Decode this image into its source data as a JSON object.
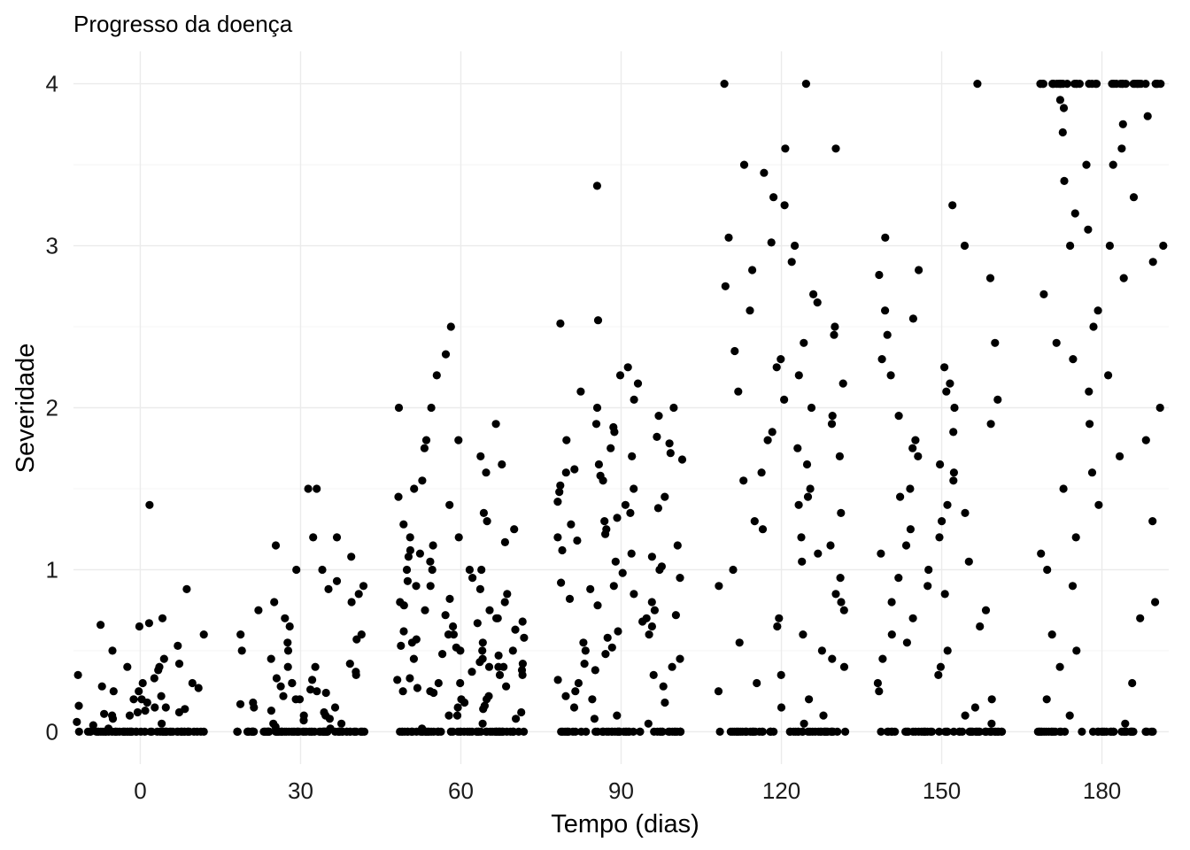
{
  "chart_data": {
    "type": "scatter",
    "title": "Progresso da doença",
    "xlabel": "Tempo (dias)",
    "ylabel": "Severidade",
    "x_ticks": [
      0,
      30,
      60,
      90,
      120,
      150,
      180
    ],
    "y_ticks": [
      0,
      1,
      2,
      3,
      4
    ],
    "xlim": [
      -12.5,
      192.5
    ],
    "ylim": [
      -0.2,
      4.2
    ],
    "jitter_width_days": 12,
    "grid": true,
    "legend": "none",
    "point_color": "#000000",
    "groups": [
      {
        "x": 0,
        "y": [
          0,
          0,
          0,
          0,
          0,
          0,
          0,
          0,
          0,
          0,
          0,
          0,
          0,
          0,
          0,
          0,
          0,
          0,
          0,
          0,
          0,
          0,
          0,
          0,
          0,
          0,
          0,
          0,
          0,
          0,
          0,
          0,
          0,
          0,
          0,
          0,
          0,
          0,
          0,
          0,
          0,
          0,
          0,
          0,
          0,
          0,
          0,
          0,
          0,
          0,
          0,
          0,
          0,
          0,
          0,
          0,
          0,
          0,
          0,
          0,
          0.02,
          0.04,
          0.05,
          0.06,
          0.08,
          0.1,
          0.1,
          0.11,
          0.12,
          0.12,
          0.13,
          0.14,
          0.15,
          0.15,
          0.16,
          0.18,
          0.2,
          0.2,
          0.22,
          0.25,
          0.25,
          0.27,
          0.28,
          0.3,
          0.3,
          0.33,
          0.35,
          0.38,
          0.4,
          0.4,
          0.42,
          0.45,
          0.5,
          0.53,
          0.6,
          0.65,
          0.66,
          0.67,
          0.7,
          0.88,
          1.4
        ]
      },
      {
        "x": 30,
        "y": [
          0,
          0,
          0,
          0,
          0,
          0,
          0,
          0,
          0,
          0,
          0,
          0,
          0,
          0,
          0,
          0,
          0,
          0,
          0,
          0,
          0,
          0,
          0,
          0,
          0,
          0,
          0,
          0,
          0,
          0,
          0,
          0,
          0,
          0,
          0,
          0,
          0,
          0,
          0,
          0,
          0,
          0,
          0,
          0,
          0,
          0,
          0,
          0,
          0,
          0,
          0,
          0,
          0,
          0,
          0,
          0,
          0,
          0,
          0,
          0,
          0,
          0,
          0,
          0,
          0,
          0,
          0,
          0,
          0,
          0,
          0,
          0,
          0,
          0,
          0,
          0,
          0,
          0,
          0,
          0,
          0.02,
          0.03,
          0.05,
          0.05,
          0.07,
          0.08,
          0.1,
          0.1,
          0.12,
          0.13,
          0.15,
          0.15,
          0.17,
          0.18,
          0.2,
          0.2,
          0.22,
          0.24,
          0.25,
          0.26,
          0.28,
          0.3,
          0.3,
          0.32,
          0.33,
          0.35,
          0.37,
          0.4,
          0.4,
          0.42,
          0.45,
          0.5,
          0.5,
          0.55,
          0.57,
          0.6,
          0.6,
          0.65,
          0.7,
          0.75,
          0.8,
          0.8,
          0.85,
          0.88,
          0.9,
          0.93,
          1.0,
          1.0,
          1.08,
          1.15,
          1.2,
          1.2,
          1.5,
          1.5
        ]
      },
      {
        "x": 60,
        "y": [
          0,
          0,
          0,
          0,
          0,
          0,
          0,
          0,
          0,
          0,
          0,
          0,
          0,
          0,
          0,
          0,
          0,
          0,
          0,
          0,
          0,
          0,
          0,
          0,
          0,
          0,
          0,
          0,
          0,
          0,
          0,
          0,
          0,
          0,
          0,
          0,
          0,
          0,
          0,
          0,
          0,
          0,
          0,
          0,
          0,
          0,
          0,
          0,
          0,
          0,
          0,
          0,
          0,
          0,
          0,
          0,
          0,
          0,
          0,
          0,
          0.02,
          0.05,
          0.08,
          0.1,
          0.1,
          0.12,
          0.14,
          0.15,
          0.16,
          0.18,
          0.2,
          0.2,
          0.22,
          0.24,
          0.25,
          0.25,
          0.27,
          0.28,
          0.3,
          0.3,
          0.32,
          0.33,
          0.35,
          0.35,
          0.37,
          0.38,
          0.4,
          0.4,
          0.4,
          0.42,
          0.43,
          0.45,
          0.45,
          0.47,
          0.48,
          0.5,
          0.5,
          0.5,
          0.52,
          0.53,
          0.55,
          0.55,
          0.57,
          0.58,
          0.6,
          0.6,
          0.62,
          0.63,
          0.65,
          0.67,
          0.68,
          0.7,
          0.7,
          0.72,
          0.75,
          0.75,
          0.78,
          0.8,
          0.8,
          0.82,
          0.85,
          0.88,
          0.9,
          0.9,
          0.93,
          0.95,
          1.0,
          1.0,
          1.0,
          1.0,
          1.05,
          1.08,
          1.1,
          1.12,
          1.15,
          1.17,
          1.2,
          1.2,
          1.25,
          1.28,
          1.3,
          1.35,
          1.4,
          1.45,
          1.5,
          1.55,
          1.6,
          1.65,
          1.7,
          1.75,
          1.8,
          1.8,
          1.9,
          2.0,
          2.0,
          2.2,
          2.33,
          2.5
        ]
      },
      {
        "x": 90,
        "y": [
          0,
          0,
          0,
          0,
          0,
          0,
          0,
          0,
          0,
          0,
          0,
          0,
          0,
          0,
          0,
          0,
          0,
          0,
          0,
          0,
          0,
          0,
          0,
          0,
          0,
          0,
          0,
          0,
          0,
          0,
          0,
          0,
          0,
          0,
          0,
          0,
          0,
          0,
          0,
          0,
          0,
          0,
          0,
          0,
          0,
          0,
          0,
          0,
          0,
          0,
          0.05,
          0.08,
          0.1,
          0.15,
          0.18,
          0.2,
          0.22,
          0.25,
          0.28,
          0.3,
          0.32,
          0.35,
          0.38,
          0.4,
          0.42,
          0.45,
          0.48,
          0.5,
          0.52,
          0.55,
          0.58,
          0.6,
          0.62,
          0.65,
          0.68,
          0.7,
          0.72,
          0.75,
          0.78,
          0.8,
          0.82,
          0.85,
          0.88,
          0.9,
          0.92,
          0.95,
          0.98,
          1.0,
          1.02,
          1.05,
          1.08,
          1.1,
          1.12,
          1.15,
          1.18,
          1.2,
          1.22,
          1.25,
          1.28,
          1.3,
          1.32,
          1.35,
          1.38,
          1.4,
          1.42,
          1.45,
          1.48,
          1.5,
          1.52,
          1.55,
          1.58,
          1.6,
          1.62,
          1.65,
          1.68,
          1.7,
          1.72,
          1.75,
          1.78,
          1.8,
          1.82,
          1.85,
          1.88,
          1.9,
          1.95,
          2.0,
          2.0,
          2.05,
          2.1,
          2.15,
          2.2,
          2.25,
          2.52,
          2.54,
          3.37
        ]
      },
      {
        "x": 120,
        "y": [
          0,
          0,
          0,
          0,
          0,
          0,
          0,
          0,
          0,
          0,
          0,
          0,
          0,
          0,
          0,
          0,
          0,
          0,
          0,
          0,
          0,
          0,
          0,
          0,
          0,
          0,
          0,
          0,
          0,
          0,
          0,
          0,
          0,
          0,
          0,
          0,
          0,
          0,
          0,
          0,
          0,
          0,
          0,
          0,
          0,
          0,
          0,
          0,
          0,
          0,
          0.05,
          0.1,
          0.15,
          0.2,
          0.25,
          0.3,
          0.35,
          0.4,
          0.45,
          0.5,
          0.55,
          0.6,
          0.65,
          0.7,
          0.75,
          0.8,
          0.85,
          0.9,
          0.95,
          1.0,
          1.05,
          1.1,
          1.15,
          1.2,
          1.25,
          1.3,
          1.35,
          1.4,
          1.45,
          1.5,
          1.55,
          1.6,
          1.65,
          1.7,
          1.75,
          1.8,
          1.85,
          1.9,
          1.95,
          2.0,
          2.05,
          2.1,
          2.15,
          2.2,
          2.25,
          2.3,
          2.35,
          2.4,
          2.45,
          2.5,
          2.6,
          2.65,
          2.7,
          2.75,
          2.85,
          2.9,
          3.0,
          3.02,
          3.05,
          3.25,
          3.3,
          3.45,
          3.5,
          3.6,
          3.6,
          4.0,
          4.0
        ]
      },
      {
        "x": 150,
        "y": [
          0,
          0,
          0,
          0,
          0,
          0,
          0,
          0,
          0,
          0,
          0,
          0,
          0,
          0,
          0,
          0,
          0,
          0,
          0,
          0,
          0,
          0,
          0,
          0,
          0,
          0,
          0,
          0,
          0,
          0,
          0,
          0,
          0,
          0,
          0,
          0,
          0,
          0,
          0,
          0,
          0,
          0,
          0,
          0,
          0,
          0,
          0,
          0,
          0,
          0,
          0.05,
          0.1,
          0.15,
          0.2,
          0.25,
          0.3,
          0.35,
          0.4,
          0.45,
          0.5,
          0.55,
          0.6,
          0.65,
          0.7,
          0.75,
          0.8,
          0.85,
          0.9,
          0.95,
          1.0,
          1.05,
          1.1,
          1.15,
          1.2,
          1.25,
          1.3,
          1.35,
          1.4,
          1.45,
          1.5,
          1.55,
          1.6,
          1.65,
          1.7,
          1.75,
          1.8,
          1.85,
          1.9,
          1.95,
          2.0,
          2.05,
          2.1,
          2.15,
          2.2,
          2.25,
          2.3,
          2.4,
          2.45,
          2.55,
          2.6,
          2.8,
          2.82,
          2.85,
          3.0,
          3.05,
          3.25,
          4.0
        ]
      },
      {
        "x": 180,
        "y": [
          0,
          0,
          0,
          0,
          0,
          0,
          0,
          0,
          0,
          0,
          0,
          0,
          0,
          0,
          0,
          0,
          0,
          0,
          0,
          0,
          0,
          0,
          0,
          0,
          0,
          0,
          0,
          0,
          0,
          0,
          0,
          0,
          0,
          0,
          0,
          0,
          0,
          0,
          0,
          0,
          0.05,
          0.1,
          0.2,
          0.3,
          0.4,
          0.5,
          0.6,
          0.7,
          0.8,
          0.9,
          1.0,
          1.1,
          1.2,
          1.3,
          1.4,
          1.5,
          1.6,
          1.7,
          1.8,
          1.9,
          2.0,
          2.1,
          2.2,
          2.3,
          2.4,
          2.5,
          2.6,
          2.7,
          2.8,
          2.9,
          3.0,
          3.0,
          3.0,
          3.1,
          3.2,
          3.3,
          3.4,
          3.5,
          3.5,
          3.6,
          3.7,
          3.75,
          3.8,
          3.85,
          3.9,
          4,
          4,
          4,
          4,
          4,
          4,
          4,
          4,
          4,
          4,
          4,
          4,
          4,
          4,
          4,
          4,
          4,
          4,
          4,
          4,
          4,
          4,
          4,
          4,
          4,
          4,
          4,
          4,
          4,
          4,
          4,
          4,
          4,
          4,
          4,
          4,
          4,
          4,
          4,
          4
        ]
      }
    ]
  }
}
